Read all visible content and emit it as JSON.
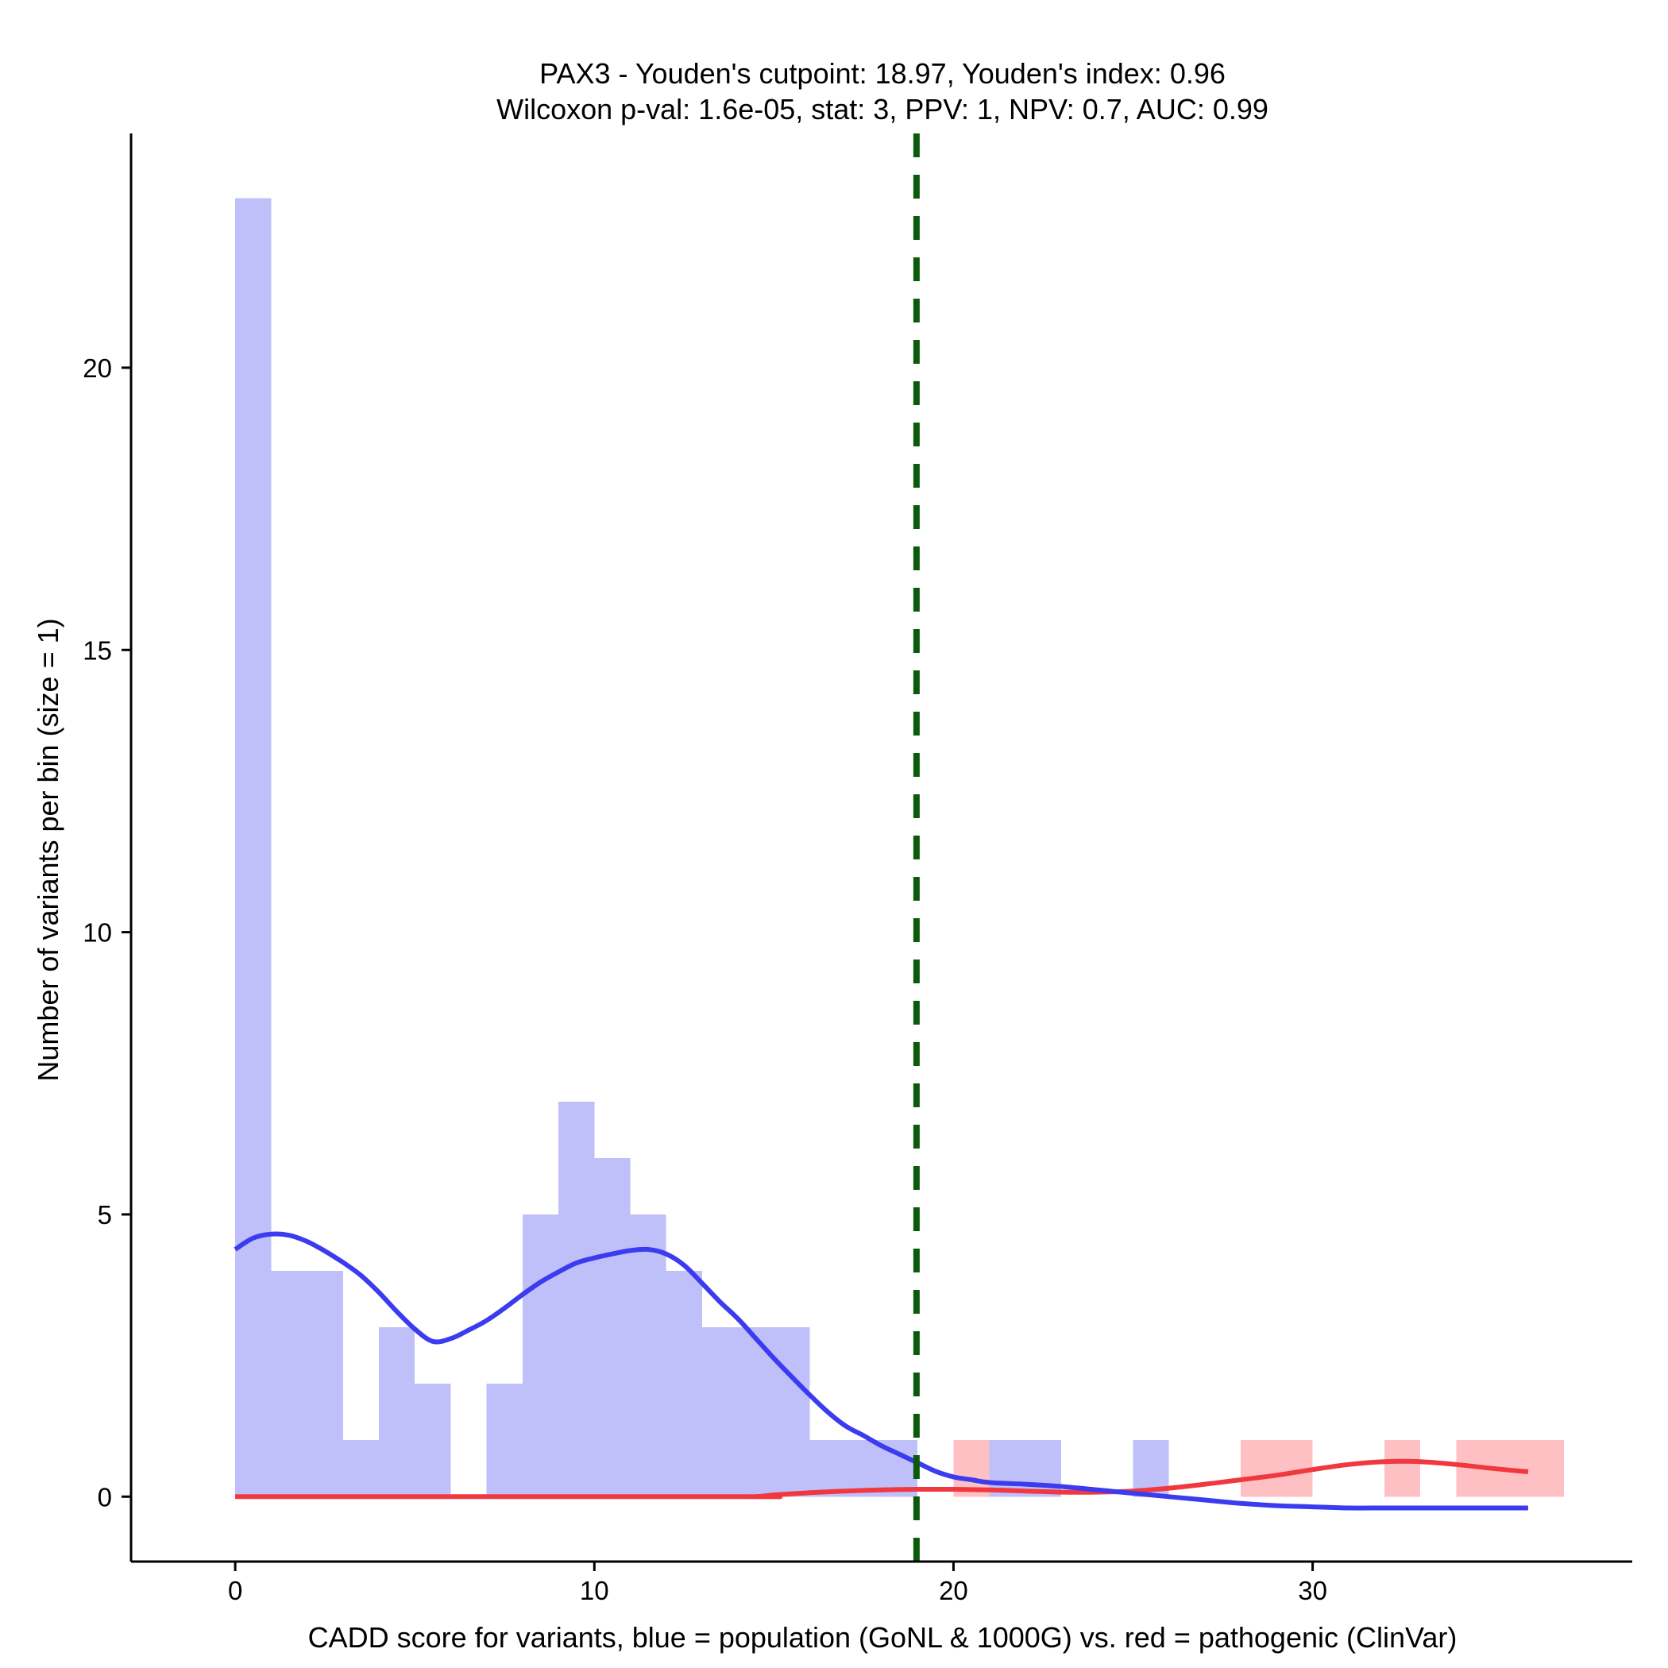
{
  "chart_data": {
    "type": "bar",
    "title_line1": "PAX3 - Youden's cutpoint: 18.97, Youden's index: 0.96",
    "title_line2": "Wilcoxon p-val: 1.6e-05, stat: 3, PPV: 1, NPV: 0.7, AUC: 0.99",
    "xlabel": "CADD score for variants, blue = population (GoNL & 1000G) vs. red = pathogenic (ClinVar)",
    "ylabel": "Number of variants per bin (size = 1)",
    "xlim": [
      -2.9,
      38.9
    ],
    "ylim": [
      -1.15,
      24.15
    ],
    "x_ticks": [
      0,
      10,
      20,
      30
    ],
    "y_ticks": [
      0,
      5,
      10,
      15,
      20
    ],
    "bin_width": 1,
    "cutpoint": 18.97,
    "colors": {
      "population_fill": "#bfbff9",
      "pathogenic_fill": "#ffc0c4",
      "population_line": "#3b3bf0",
      "pathogenic_line": "#f0383f",
      "cutpoint_line": "#0b5a0b",
      "axis": "#000000"
    },
    "series": [
      {
        "name": "population (GoNL & 1000G)",
        "bins": [
          {
            "x0": 0,
            "count": 23
          },
          {
            "x0": 1,
            "count": 4
          },
          {
            "x0": 2,
            "count": 4
          },
          {
            "x0": 3,
            "count": 1
          },
          {
            "x0": 4,
            "count": 3
          },
          {
            "x0": 5,
            "count": 2
          },
          {
            "x0": 6,
            "count": 0
          },
          {
            "x0": 7,
            "count": 2
          },
          {
            "x0": 8,
            "count": 5
          },
          {
            "x0": 9,
            "count": 7
          },
          {
            "x0": 10,
            "count": 6
          },
          {
            "x0": 11,
            "count": 5
          },
          {
            "x0": 12,
            "count": 4
          },
          {
            "x0": 13,
            "count": 3
          },
          {
            "x0": 14,
            "count": 3
          },
          {
            "x0": 15,
            "count": 3
          },
          {
            "x0": 16,
            "count": 1
          },
          {
            "x0": 17,
            "count": 1
          },
          {
            "x0": 18,
            "count": 1
          },
          {
            "x0": 21,
            "count": 1
          },
          {
            "x0": 22,
            "count": 1
          },
          {
            "x0": 25,
            "count": 1
          }
        ],
        "density_curve": [
          [
            0,
            4.38
          ],
          [
            0.5,
            4.58
          ],
          [
            1,
            4.65
          ],
          [
            1.5,
            4.63
          ],
          [
            2,
            4.52
          ],
          [
            2.5,
            4.35
          ],
          [
            3,
            4.15
          ],
          [
            3.5,
            3.92
          ],
          [
            4,
            3.62
          ],
          [
            4.5,
            3.28
          ],
          [
            5,
            2.97
          ],
          [
            5.5,
            2.75
          ],
          [
            6,
            2.8
          ],
          [
            6.5,
            2.95
          ],
          [
            7,
            3.12
          ],
          [
            7.5,
            3.34
          ],
          [
            8,
            3.58
          ],
          [
            8.5,
            3.8
          ],
          [
            9,
            3.98
          ],
          [
            9.5,
            4.14
          ],
          [
            10,
            4.23
          ],
          [
            10.5,
            4.3
          ],
          [
            11,
            4.36
          ],
          [
            11.5,
            4.38
          ],
          [
            12,
            4.3
          ],
          [
            12.5,
            4.1
          ],
          [
            13,
            3.78
          ],
          [
            13.5,
            3.45
          ],
          [
            14,
            3.15
          ],
          [
            14.5,
            2.8
          ],
          [
            15,
            2.45
          ],
          [
            15.5,
            2.12
          ],
          [
            16,
            1.8
          ],
          [
            16.5,
            1.5
          ],
          [
            17,
            1.25
          ],
          [
            17.5,
            1.08
          ],
          [
            18,
            0.9
          ],
          [
            18.5,
            0.75
          ],
          [
            19,
            0.6
          ],
          [
            19.5,
            0.45
          ],
          [
            20,
            0.35
          ],
          [
            20.5,
            0.3
          ],
          [
            21,
            0.25
          ],
          [
            22,
            0.22
          ],
          [
            23,
            0.18
          ],
          [
            24,
            0.12
          ],
          [
            25,
            0.06
          ],
          [
            26,
            0.0
          ],
          [
            27,
            -0.06
          ],
          [
            28,
            -0.12
          ],
          [
            29,
            -0.16
          ],
          [
            30,
            -0.18
          ],
          [
            31,
            -0.2
          ],
          [
            32,
            -0.2
          ],
          [
            33,
            -0.2
          ],
          [
            34,
            -0.2
          ],
          [
            35,
            -0.2
          ],
          [
            36,
            -0.2
          ]
        ]
      },
      {
        "name": "pathogenic (ClinVar)",
        "bins": [
          {
            "x0": 20,
            "count": 1
          },
          {
            "x0": 28,
            "count": 1
          },
          {
            "x0": 29,
            "count": 1
          },
          {
            "x0": 32,
            "count": 1
          },
          {
            "x0": 34,
            "count": 1
          },
          {
            "x0": 35,
            "count": 1
          },
          {
            "x0": 36,
            "count": 1
          }
        ],
        "density_curve": [
          [
            0,
            0.0
          ],
          [
            14,
            0.0
          ],
          [
            14.5,
            0.0
          ],
          [
            15,
            0.03
          ],
          [
            16,
            0.07
          ],
          [
            17,
            0.1
          ],
          [
            18,
            0.12
          ],
          [
            19,
            0.13
          ],
          [
            20,
            0.13
          ],
          [
            21,
            0.12
          ],
          [
            22,
            0.1
          ],
          [
            23,
            0.08
          ],
          [
            24,
            0.08
          ],
          [
            25,
            0.1
          ],
          [
            26,
            0.15
          ],
          [
            27,
            0.22
          ],
          [
            28,
            0.3
          ],
          [
            29,
            0.38
          ],
          [
            30,
            0.48
          ],
          [
            31,
            0.57
          ],
          [
            32,
            0.62
          ],
          [
            33,
            0.62
          ],
          [
            34,
            0.57
          ],
          [
            35,
            0.5
          ],
          [
            36,
            0.44
          ]
        ]
      }
    ]
  }
}
